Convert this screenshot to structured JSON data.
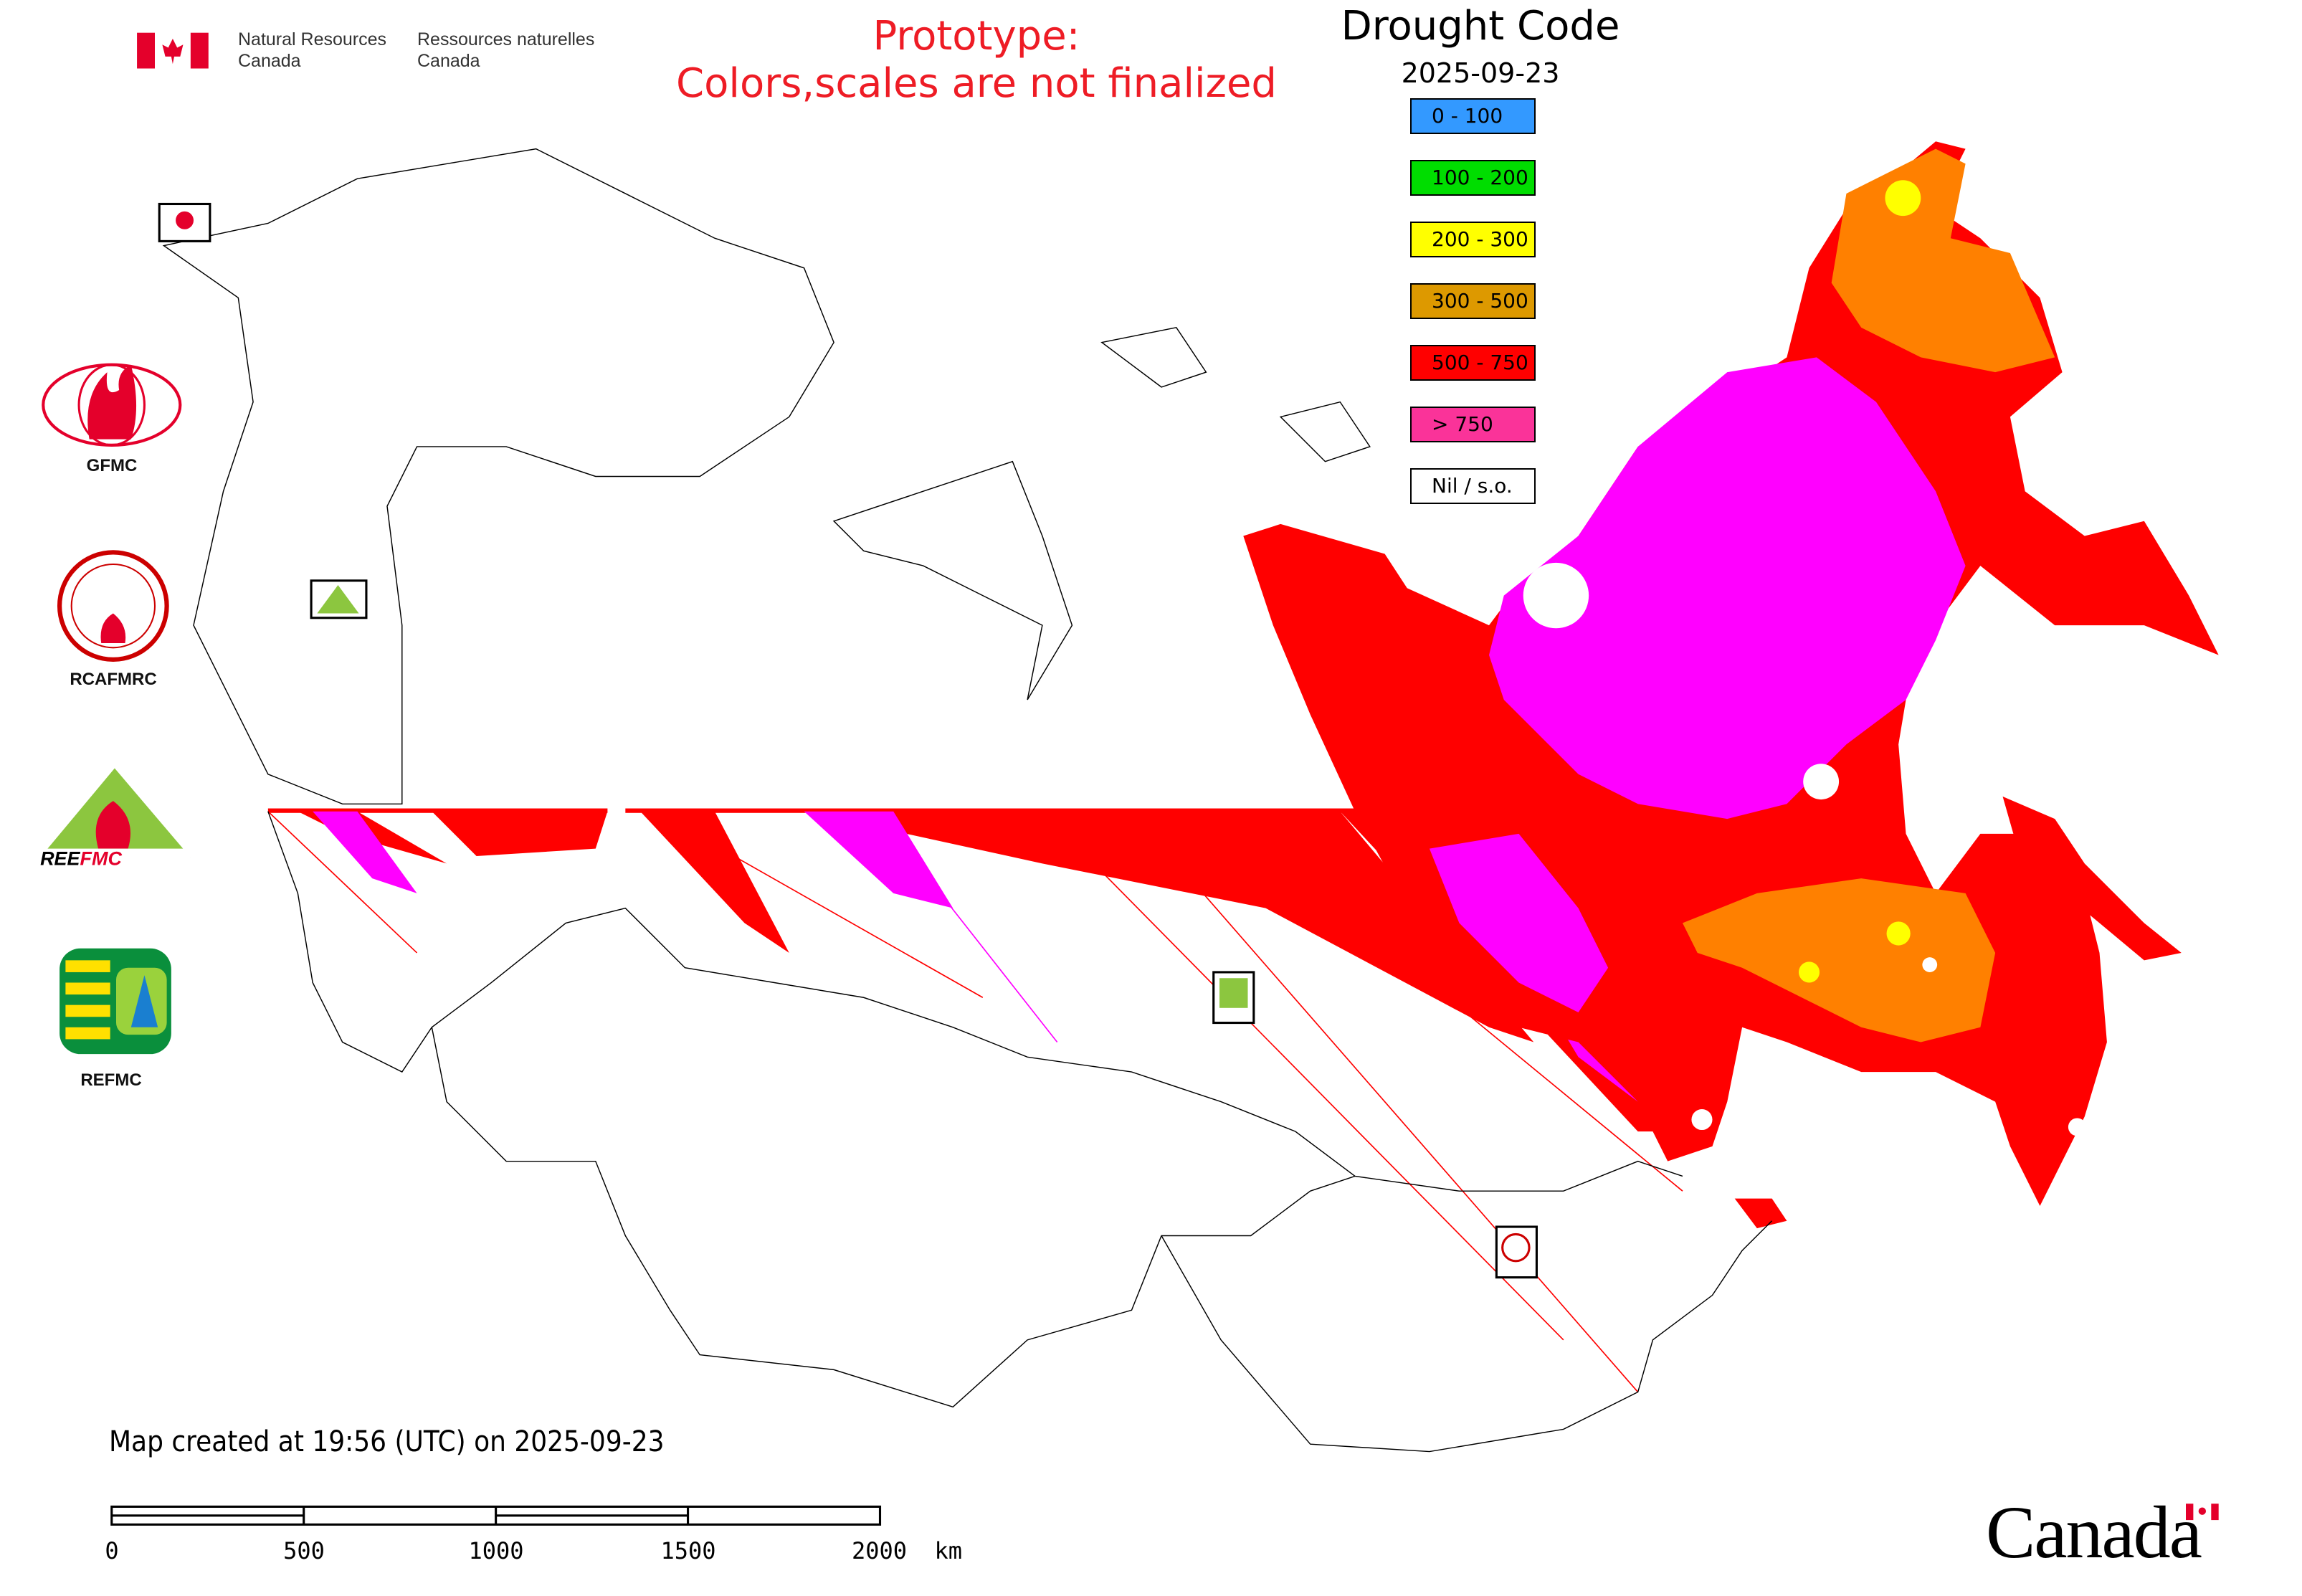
{
  "header": {
    "org_en": [
      "Natural Resources",
      "Canada"
    ],
    "org_fr": [
      "Ressources naturelles",
      "Canada"
    ],
    "notice": [
      "Prototype:",
      "Colors,scales are not finalized"
    ]
  },
  "legend": {
    "title": "Drought Code",
    "date": "2025-09-23",
    "items": [
      {
        "label": "0 - 100",
        "color": "#3399ff"
      },
      {
        "label": "100 - 200",
        "color": "#00dd00"
      },
      {
        "label": "200 - 300",
        "color": "#ffff00"
      },
      {
        "label": "300 - 500",
        "color": "#dd9900"
      },
      {
        "label": "500 - 750",
        "color": "#ff0000"
      },
      {
        "label": "> 750",
        "color": "#fa3399"
      },
      {
        "label": "Nil / s.o.",
        "color": "#ffffff"
      }
    ]
  },
  "map_colors": {
    "dc_500_750": "#ff0000",
    "dc_over_750": "#ff00ff",
    "dc_300_500": "#ff8000",
    "dc_200_300": "#ffff00"
  },
  "logos": {
    "gfmc": "GFMC",
    "rcafmrc": "RCAFMRC",
    "reefmc": "REEFMC",
    "refmc": "REFMC"
  },
  "footer": {
    "created": "Map created at 19:56 (UTC) on 2025-09-23",
    "scale_labels": [
      "0",
      "500",
      "1000",
      "1500",
      "2000  km"
    ],
    "wordmark": "Canada"
  }
}
